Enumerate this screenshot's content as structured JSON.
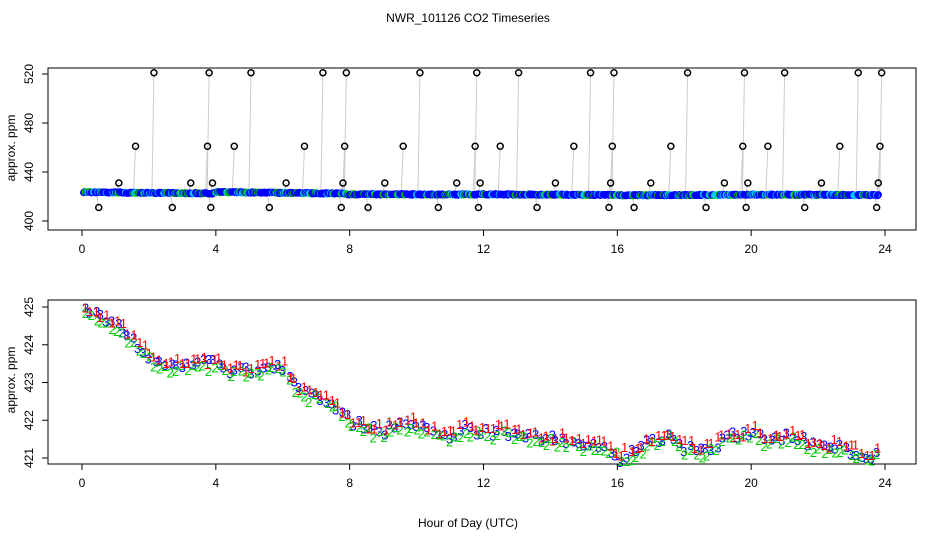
{
  "chart_data": [
    {
      "type": "scatter",
      "title": "NWR_101126  CO2 Timeseries",
      "xlabel": "",
      "ylabel": "approx. ppm",
      "xlim": [
        0,
        24
      ],
      "ylim": [
        400,
        520
      ],
      "xticks": [
        "0",
        "4",
        "8",
        "12",
        "16",
        "20",
        "24"
      ],
      "yticks": [
        "400",
        "440",
        "480",
        "520"
      ],
      "baseline_series": {
        "name": "continuous samples",
        "colors": [
          "#0000ff",
          "#00c8ff",
          "#00cc00"
        ],
        "segments": [
          {
            "x_start": 0.05,
            "x_end": 1.9,
            "y_start": 423.6,
            "y_end": 423.0
          },
          {
            "x_start": 1.9,
            "x_end": 3.9,
            "y_start": 423.0,
            "y_end": 422.5
          },
          {
            "x_start": 3.95,
            "x_end": 7.9,
            "y_start": 423.6,
            "y_end": 422.4
          },
          {
            "x_start": 7.95,
            "x_end": 11.9,
            "y_start": 421.8,
            "y_end": 421.6
          },
          {
            "x_start": 11.95,
            "x_end": 15.9,
            "y_start": 421.8,
            "y_end": 421.2
          },
          {
            "x_start": 15.95,
            "x_end": 19.85,
            "y_start": 421.0,
            "y_end": 421.4
          },
          {
            "x_start": 19.9,
            "x_end": 23.8,
            "y_start": 421.6,
            "y_end": 421.1
          }
        ]
      },
      "flask_samples": {
        "name": "calibration / spike samples",
        "x": [
          0.5,
          1.1,
          1.6,
          2.15,
          2.7,
          3.25,
          3.75,
          3.8,
          3.85,
          3.9,
          4.55,
          5.05,
          5.6,
          6.1,
          6.65,
          7.2,
          7.75,
          7.8,
          7.85,
          7.9,
          8.55,
          9.05,
          9.6,
          10.1,
          10.65,
          11.2,
          11.75,
          11.8,
          11.85,
          11.9,
          12.5,
          13.05,
          13.6,
          14.15,
          14.7,
          15.2,
          15.75,
          15.8,
          15.85,
          15.9,
          16.5,
          17.0,
          17.6,
          18.1,
          18.65,
          19.2,
          19.75,
          19.8,
          19.85,
          19.9,
          20.5,
          21.0,
          21.6,
          22.1,
          22.65,
          23.2,
          23.75,
          23.8,
          23.85,
          23.9
        ],
        "y": [
          411,
          431,
          461,
          521,
          411,
          431,
          461,
          521,
          411,
          431,
          461,
          521,
          411,
          431,
          461,
          521,
          411,
          431,
          461,
          521,
          411,
          431,
          461,
          521,
          411,
          431,
          461,
          521,
          411,
          431,
          461,
          521,
          411,
          431,
          461,
          521,
          411,
          431,
          461,
          521,
          411,
          431,
          461,
          521,
          411,
          431,
          461,
          521,
          411,
          431,
          461,
          521,
          411,
          431,
          461,
          521,
          411,
          431,
          461,
          521
        ]
      }
    },
    {
      "type": "scatter",
      "title": "",
      "xlabel": "Hour of Day (UTC)",
      "ylabel": "approx. ppm",
      "xlim": [
        0,
        24
      ],
      "ylim": [
        421,
        425
      ],
      "xticks": [
        "0",
        "4",
        "8",
        "12",
        "16",
        "20",
        "24"
      ],
      "yticks": [
        "421",
        "422",
        "423",
        "424",
        "425"
      ],
      "series": [
        {
          "name": "1",
          "color": "#ff0000",
          "offset": 0.18,
          "label": "1"
        },
        {
          "name": "2",
          "color": "#00cc00",
          "offset": -0.18,
          "label": "2"
        },
        {
          "name": "3",
          "color": "#0000ff",
          "offset": 0.0,
          "label": "3"
        }
      ],
      "trend": {
        "x": [
          0.1,
          0.5,
          1.0,
          1.5,
          2.0,
          2.5,
          3.0,
          3.5,
          4.0,
          4.5,
          5.0,
          5.5,
          6.0,
          6.3,
          6.6,
          7.0,
          7.5,
          8.0,
          8.5,
          9.0,
          9.5,
          10.0,
          10.5,
          11.0,
          11.5,
          12.0,
          12.5,
          13.0,
          13.5,
          14.0,
          14.5,
          15.0,
          15.5,
          15.9,
          16.1,
          16.5,
          17.0,
          17.5,
          18.0,
          18.5,
          19.0,
          19.5,
          19.8,
          20.0,
          20.5,
          21.0,
          21.5,
          22.0,
          22.5,
          23.0,
          23.5,
          23.9
        ],
        "y": [
          424.9,
          424.8,
          424.5,
          424.2,
          423.7,
          423.4,
          423.5,
          423.5,
          423.5,
          423.3,
          423.3,
          423.4,
          423.4,
          423.0,
          422.7,
          422.7,
          422.5,
          422.0,
          421.8,
          421.7,
          421.9,
          421.9,
          421.7,
          421.6,
          421.8,
          421.7,
          421.7,
          421.7,
          421.6,
          421.5,
          421.5,
          421.4,
          421.3,
          421.2,
          421.0,
          421.2,
          421.4,
          421.6,
          421.3,
          421.2,
          421.4,
          421.6,
          421.6,
          421.7,
          421.5,
          421.6,
          421.5,
          421.3,
          421.3,
          421.2,
          421.1,
          421.1
        ]
      }
    }
  ]
}
